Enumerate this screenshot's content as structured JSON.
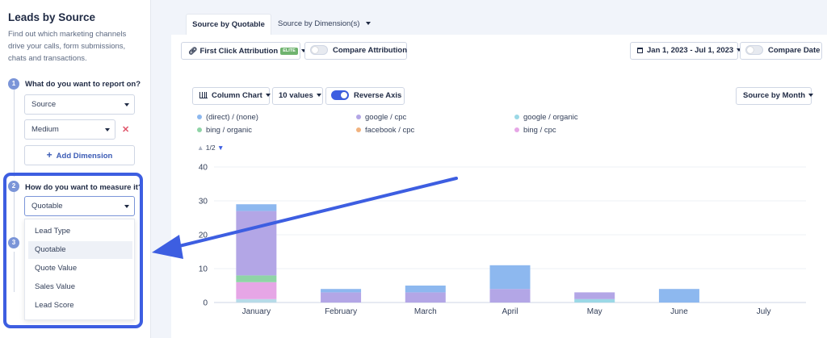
{
  "sidebar": {
    "title": "Leads by Source",
    "description": "Find out which marketing channels drive your calls, form submissions, chats and transactions.",
    "step1": {
      "num": "1",
      "question": "What do you want to report on?",
      "dimension1": "Source",
      "dimension2": "Medium",
      "remove": "✕",
      "add_dimension": "Add Dimension",
      "add_icon": "+"
    },
    "step2": {
      "num": "2",
      "question": "How do you want to measure it?",
      "selected": "Quotable",
      "options": [
        "Lead Type",
        "Quotable",
        "Quote Value",
        "Sales Value",
        "Lead Score"
      ]
    },
    "step3": {
      "num": "3"
    }
  },
  "tabs": [
    {
      "label": "Source by Quotable"
    },
    {
      "label": "Source by Dimension(s)"
    }
  ],
  "toolbar": {
    "attribution": "First Click Attribution",
    "badge": "ELITE",
    "compare_attribution": "Compare Attribution",
    "date_range": "Jan 1, 2023 - Jul 1, 2023",
    "compare_date": "Compare Date"
  },
  "chart_controls": {
    "chart_type": "Column Chart",
    "values_count": "10 values",
    "reverse_axis": "Reverse Axis",
    "group_by": "Source by Month"
  },
  "pagination": "1/2",
  "colors": {
    "accent": "#3d5ee1",
    "highlight_border": "#3d5ee1"
  },
  "chart_data": {
    "type": "bar",
    "stacked": true,
    "categories": [
      "January",
      "February",
      "March",
      "April",
      "May",
      "June",
      "July"
    ],
    "ylim": [
      0,
      40
    ],
    "yticks": [
      0,
      10,
      20,
      30,
      40
    ],
    "series": [
      {
        "name": "(direct) / (none)",
        "color": "#8db8ef",
        "values": [
          2,
          1,
          2,
          7,
          0,
          4,
          0
        ]
      },
      {
        "name": "google / cpc",
        "color": "#b3a6e6",
        "values": [
          19,
          3,
          3,
          4,
          2,
          0,
          0
        ]
      },
      {
        "name": "google / organic",
        "color": "#9bd8e6",
        "values": [
          0,
          0,
          0,
          0,
          1,
          0,
          0
        ]
      },
      {
        "name": "bing / organic",
        "color": "#8fd4a6",
        "values": [
          2,
          0,
          0,
          0,
          0,
          0,
          0
        ]
      },
      {
        "name": "facebook / cpc",
        "color": "#f1b27e",
        "values": [
          0,
          0,
          0,
          0,
          0,
          0,
          0
        ]
      },
      {
        "name": "bing / cpc",
        "color": "#e6a6e6",
        "values": [
          5,
          0,
          0,
          0,
          0,
          0,
          0
        ]
      },
      {
        "name": "",
        "color": "#b7dbe8",
        "values": [
          1,
          0,
          0,
          0,
          0,
          0,
          0
        ]
      }
    ],
    "legend": [
      {
        "name": "(direct) / (none)",
        "color": "#8db8ef"
      },
      {
        "name": "google / cpc",
        "color": "#b3a6e6"
      },
      {
        "name": "google / organic",
        "color": "#9bd8e6"
      },
      {
        "name": "bing / organic",
        "color": "#8fd4a6"
      },
      {
        "name": "facebook / cpc",
        "color": "#f1b27e"
      },
      {
        "name": "bing / cpc",
        "color": "#e6a6e6"
      }
    ]
  }
}
